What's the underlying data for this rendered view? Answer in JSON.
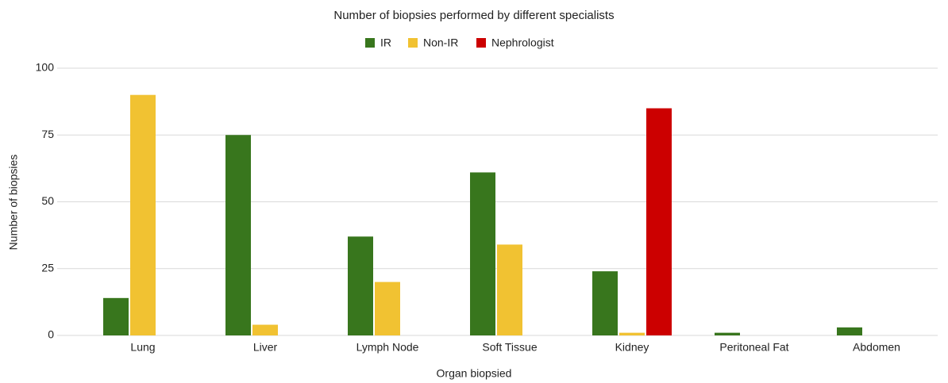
{
  "chart_data": {
    "type": "bar",
    "title": "Number of biopsies performed by different specialists",
    "x_label": "Organ biopsied",
    "y_label": "Number of biopsies",
    "categories": [
      "Lung",
      "Liver",
      "Lymph Node",
      "Soft Tissue",
      "Kidney",
      "Peritoneal Fat",
      "Abdomen"
    ],
    "series": [
      {
        "name": "IR",
        "color": "#38761d",
        "values": [
          14,
          75,
          37,
          61,
          24,
          1,
          3
        ]
      },
      {
        "name": "Non-IR",
        "color": "#f1c232",
        "values": [
          90,
          4,
          20,
          34,
          1,
          0,
          0
        ]
      },
      {
        "name": "Nephrologist",
        "color": "#cc0000",
        "values": [
          0,
          0,
          0,
          0,
          85,
          0,
          0
        ]
      }
    ],
    "ylim": [
      0,
      100
    ],
    "yticks": [
      0,
      25,
      50,
      75,
      100
    ],
    "grid": true,
    "legend": "top"
  }
}
